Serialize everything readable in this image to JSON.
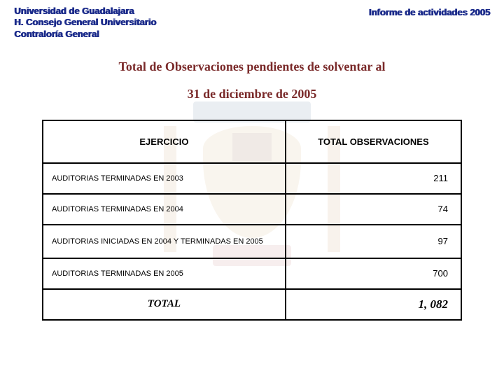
{
  "header": {
    "org_line1": "Universidad de Guadalajara",
    "org_line2": "H. Consejo General Universitario",
    "org_line3": "Contraloría General",
    "report_title": "Informe de actividades 2005"
  },
  "title": {
    "line1": "Total de Observaciones pendientes de solventar al",
    "line2": "31 de diciembre de 2005"
  },
  "table": {
    "columns": [
      "EJERCICIO",
      "TOTAL OBSERVACIONES"
    ],
    "column_widths": [
      "58%",
      "42%"
    ],
    "header_fontsize": 13,
    "cell_fontsize": 11,
    "border_color": "#000000",
    "border_width": 2.5,
    "rows": [
      {
        "label": "AUDITORIAS TERMINADAS EN 2003",
        "value": "211"
      },
      {
        "label": "AUDITORIAS TERMINADAS EN 2004",
        "value": "74"
      },
      {
        "label": "AUDITORIAS INICIADAS EN 2004 Y TERMINADAS EN 2005",
        "value": "97"
      },
      {
        "label": "AUDITORIAS TERMINADAS EN 2005",
        "value": "700"
      }
    ],
    "total": {
      "label": "TOTAL",
      "value": "1, 082"
    }
  },
  "colors": {
    "heading_blue": "#1a2a8a",
    "title_red": "#7a2a2a",
    "background": "#ffffff"
  },
  "typography": {
    "body_font": "Arial",
    "title_font": "Georgia",
    "heading_fontsize": 13,
    "title_fontsize": 18
  }
}
